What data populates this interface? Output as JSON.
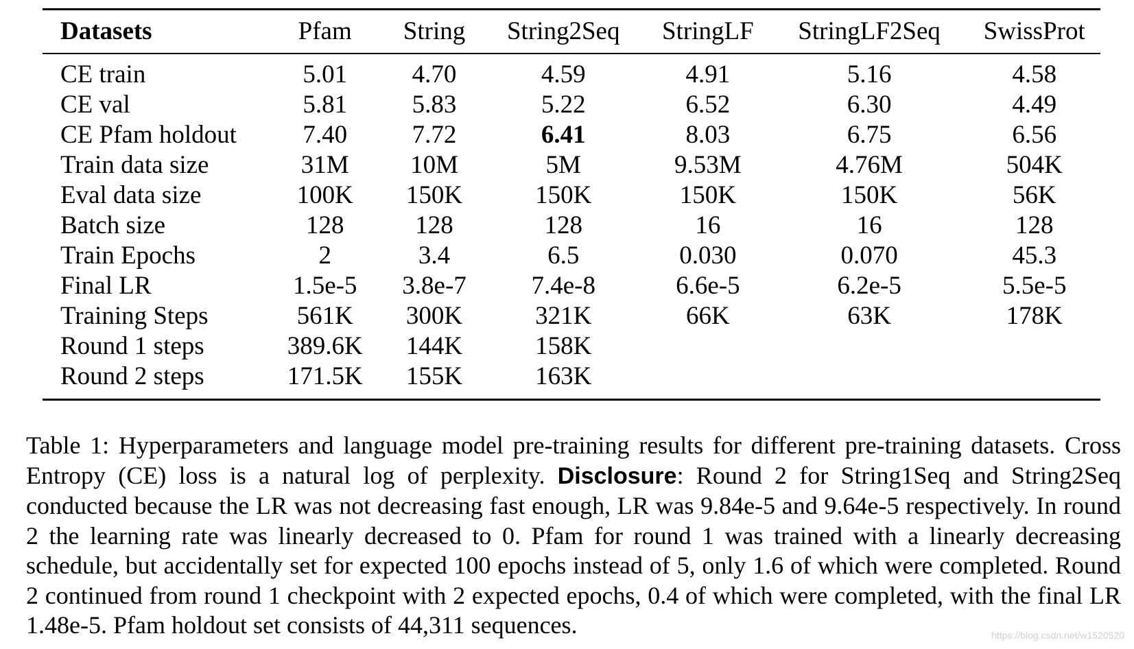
{
  "table": {
    "columns": [
      "Datasets",
      "Pfam",
      "String",
      "String2Seq",
      "StringLF",
      "StringLF2Seq",
      "SwissProt"
    ],
    "rows": [
      {
        "label": "CE train",
        "values": [
          "5.01",
          "4.70",
          "4.59",
          "4.91",
          "5.16",
          "4.58"
        ]
      },
      {
        "label": "CE val",
        "values": [
          "5.81",
          "5.83",
          "5.22",
          "6.52",
          "6.30",
          "4.49"
        ]
      },
      {
        "label": "CE Pfam holdout",
        "values": [
          "7.40",
          "7.72",
          "6.41",
          "8.03",
          "6.75",
          "6.56"
        ],
        "bold_index": 2
      },
      {
        "label": "Train data size",
        "values": [
          "31M",
          "10M",
          "5M",
          "9.53M",
          "4.76M",
          "504K"
        ]
      },
      {
        "label": "Eval data size",
        "values": [
          "100K",
          "150K",
          "150K",
          "150K",
          "150K",
          "56K"
        ]
      },
      {
        "label": "Batch size",
        "values": [
          "128",
          "128",
          "128",
          "16",
          "16",
          "128"
        ]
      },
      {
        "label": "Train Epochs",
        "values": [
          "2",
          "3.4",
          "6.5",
          "0.030",
          "0.070",
          "45.3"
        ]
      },
      {
        "label": "Final LR",
        "values": [
          "1.5e-5",
          "3.8e-7",
          "7.4e-8",
          "6.6e-5",
          "6.2e-5",
          "5.5e-5"
        ]
      },
      {
        "label": "Training Steps",
        "values": [
          "561K",
          "300K",
          "321K",
          "66K",
          "63K",
          "178K"
        ]
      },
      {
        "label": "Round 1 steps",
        "values": [
          "389.6K",
          "144K",
          "158K",
          "",
          "",
          ""
        ]
      },
      {
        "label": "Round 2 steps",
        "values": [
          "171.5K",
          "155K",
          "163K",
          "",
          "",
          ""
        ]
      }
    ]
  },
  "caption": {
    "prefix": "Table 1: Hyperparameters and language model pre-training results for different pre-training datasets. Cross Entropy (CE) loss is a natural log of perplexity.",
    "disclosure_label": "Disclosure",
    "body": ": Round 2 for String1Seq and String2Seq conducted because the LR was not decreasing fast enough, LR was 9.84e-5 and 9.64e-5 respectively. In round 2 the learning rate was linearly decreased to 0. Pfam for round 1 was trained with a linearly decreasing schedule, but accidentally set for expected 100 epochs instead of 5, only 1.6 of which were completed. Round 2 continued from round 1 checkpoint with 2 expected epochs, 0.4 of which were completed, with the final LR 1.48e-5. Pfam holdout set consists of 44,311 sequences."
  },
  "watermark": "https://blog.csdn.net/w1520520"
}
